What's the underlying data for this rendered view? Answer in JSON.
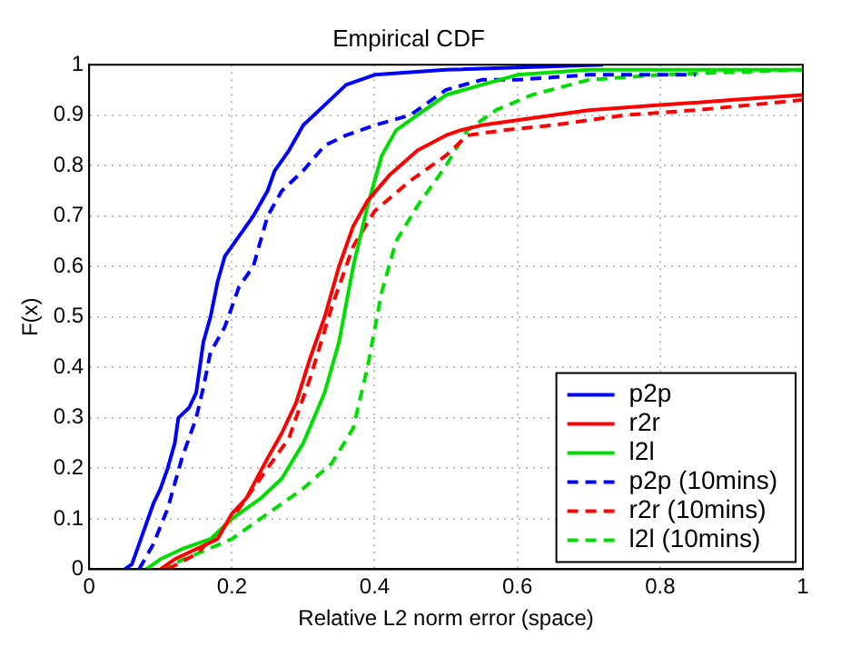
{
  "chart_data": {
    "type": "line",
    "title": "Empirical CDF",
    "xlabel": "Relative L2 norm error (space)",
    "ylabel": "F(x)",
    "xlim": [
      0,
      1
    ],
    "xticks": [
      0,
      0.2,
      0.4,
      0.6,
      0.8,
      1
    ],
    "ylim": [
      0,
      1
    ],
    "yticks": [
      0,
      0.1,
      0.2,
      0.3,
      0.4,
      0.5,
      0.6,
      0.7,
      0.8,
      0.9,
      1
    ],
    "grid": true,
    "legend": "bottom right",
    "marker": "none",
    "series": [
      {
        "name": "p2p",
        "color": "#0000ff",
        "line_style": "solid",
        "x": [
          0.05,
          0.06,
          0.07,
          0.08,
          0.09,
          0.1,
          0.11,
          0.12,
          0.125,
          0.14,
          0.15,
          0.16,
          0.17,
          0.18,
          0.19,
          0.21,
          0.23,
          0.25,
          0.26,
          0.28,
          0.3,
          0.33,
          0.36,
          0.4,
          0.5,
          0.72
        ],
        "values": [
          0,
          0.01,
          0.05,
          0.09,
          0.13,
          0.16,
          0.2,
          0.25,
          0.3,
          0.32,
          0.35,
          0.45,
          0.5,
          0.57,
          0.62,
          0.66,
          0.7,
          0.75,
          0.79,
          0.83,
          0.88,
          0.92,
          0.96,
          0.98,
          0.99,
          1
        ]
      },
      {
        "name": "r2r",
        "color": "#ff0000",
        "line_style": "solid",
        "x": [
          0.1,
          0.12,
          0.15,
          0.18,
          0.2,
          0.22,
          0.25,
          0.27,
          0.29,
          0.31,
          0.33,
          0.35,
          0.37,
          0.39,
          0.42,
          0.46,
          0.5,
          0.52,
          0.55,
          0.6,
          0.7,
          0.8,
          0.9,
          1
        ],
        "values": [
          0,
          0.02,
          0.04,
          0.06,
          0.11,
          0.14,
          0.22,
          0.27,
          0.33,
          0.42,
          0.5,
          0.6,
          0.68,
          0.73,
          0.78,
          0.83,
          0.86,
          0.87,
          0.88,
          0.89,
          0.91,
          0.92,
          0.93,
          0.94
        ]
      },
      {
        "name": "l2l",
        "color": "#00dd00",
        "line_style": "solid",
        "x": [
          0.08,
          0.1,
          0.13,
          0.17,
          0.2,
          0.24,
          0.27,
          0.3,
          0.33,
          0.35,
          0.37,
          0.39,
          0.41,
          0.43,
          0.46,
          0.5,
          0.55,
          0.6,
          0.7,
          1
        ],
        "values": [
          0,
          0.02,
          0.04,
          0.06,
          0.1,
          0.14,
          0.18,
          0.25,
          0.35,
          0.45,
          0.6,
          0.72,
          0.82,
          0.87,
          0.9,
          0.94,
          0.96,
          0.98,
          0.99,
          0.99
        ]
      },
      {
        "name": "p2p (10mins)",
        "color": "#0000ff",
        "line_style": "dashed",
        "x": [
          0.07,
          0.09,
          0.11,
          0.13,
          0.15,
          0.16,
          0.17,
          0.19,
          0.21,
          0.23,
          0.25,
          0.27,
          0.3,
          0.33,
          0.36,
          0.4,
          0.45,
          0.5,
          0.55,
          0.6,
          0.7,
          0.85
        ],
        "values": [
          0,
          0.05,
          0.12,
          0.22,
          0.3,
          0.36,
          0.43,
          0.48,
          0.56,
          0.6,
          0.7,
          0.75,
          0.79,
          0.84,
          0.86,
          0.88,
          0.9,
          0.95,
          0.97,
          0.97,
          0.98,
          0.98
        ]
      },
      {
        "name": "r2r (10mins)",
        "color": "#ff0000",
        "line_style": "dashed",
        "x": [
          0.11,
          0.15,
          0.2,
          0.25,
          0.28,
          0.31,
          0.34,
          0.37,
          0.4,
          0.45,
          0.5,
          0.53,
          0.58,
          0.65,
          0.75,
          0.85,
          1
        ],
        "values": [
          0,
          0.03,
          0.1,
          0.2,
          0.26,
          0.38,
          0.52,
          0.64,
          0.71,
          0.77,
          0.82,
          0.86,
          0.87,
          0.88,
          0.9,
          0.91,
          0.93
        ]
      },
      {
        "name": "l2l (10mins)",
        "color": "#00dd00",
        "line_style": "dashed",
        "x": [
          0.1,
          0.15,
          0.2,
          0.25,
          0.3,
          0.34,
          0.37,
          0.39,
          0.41,
          0.43,
          0.46,
          0.5,
          0.53,
          0.57,
          0.62,
          0.7,
          0.8,
          1
        ],
        "values": [
          0,
          0.03,
          0.06,
          0.11,
          0.16,
          0.21,
          0.28,
          0.4,
          0.55,
          0.65,
          0.72,
          0.8,
          0.87,
          0.91,
          0.94,
          0.97,
          0.98,
          0.99
        ]
      }
    ]
  }
}
